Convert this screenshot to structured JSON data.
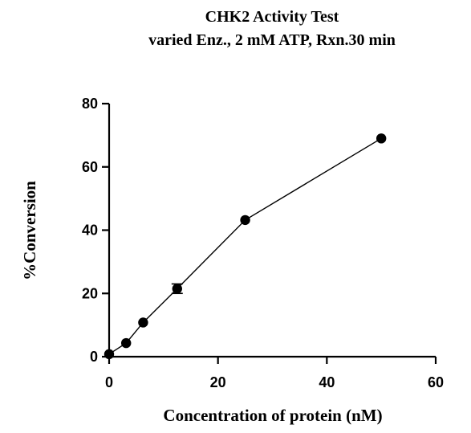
{
  "chart_data": {
    "type": "scatter",
    "title": "CHK2 Activity Test",
    "subtitle": "varied Enz., 2 mM ATP, Rxn.30 min",
    "xlabel": "Concentration of protein (nM)",
    "ylabel": "%Conversion",
    "xlim": [
      0,
      60
    ],
    "ylim": [
      0,
      80
    ],
    "x_ticks": [
      0,
      20,
      40,
      60
    ],
    "y_ticks": [
      0,
      20,
      40,
      60,
      80
    ],
    "grid": false,
    "point_color": "#000000",
    "line_color": "#000000",
    "series": [
      {
        "x": [
          0,
          3.125,
          6.25,
          12.5,
          25,
          50
        ],
        "y": [
          0.8,
          4.3,
          10.8,
          21.5,
          43.2,
          69.0
        ],
        "error": [
          0,
          0,
          0,
          1.5,
          0,
          0
        ]
      }
    ]
  }
}
